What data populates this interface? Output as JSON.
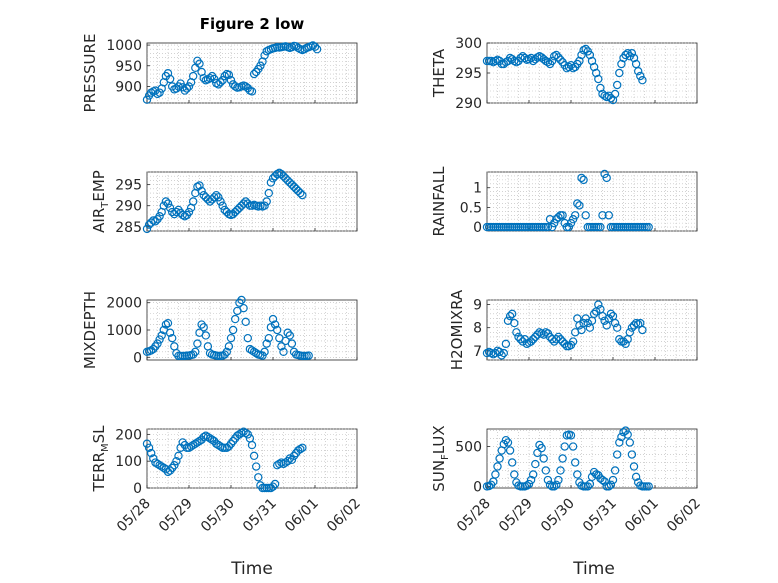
{
  "figure_title": "Figure 2 low",
  "xlabel": "Time",
  "x_ticks": [
    "05/28",
    "05/29",
    "05/30",
    "05/31",
    "06/01",
    "06/02"
  ],
  "colors": {
    "marker": "#0072bd",
    "axes": "#262626",
    "grid": "#b8b8b8"
  },
  "chart_data": [
    {
      "type": "scatter",
      "ylabel": "PRESSURE",
      "title": "Figure 2 low",
      "xlim": [
        "05/28",
        "06/02"
      ],
      "ylim": [
        860,
        1005
      ],
      "yticks": [
        900,
        950,
        1000
      ],
      "x_day_offsets": [
        0,
        0.05,
        0.1,
        0.15,
        0.2,
        0.25,
        0.3,
        0.35,
        0.4,
        0.45,
        0.5,
        0.55,
        0.6,
        0.65,
        0.7,
        0.75,
        0.8,
        0.85,
        0.9,
        0.95,
        1.0,
        1.05,
        1.1,
        1.15,
        1.2,
        1.25,
        1.3,
        1.35,
        1.4,
        1.45,
        1.5,
        1.55,
        1.6,
        1.65,
        1.7,
        1.75,
        1.8,
        1.85,
        1.9,
        1.95,
        2.0,
        2.05,
        2.1,
        2.15,
        2.2,
        2.25,
        2.3,
        2.35,
        2.4,
        2.45,
        2.5,
        2.55,
        2.6,
        2.65,
        2.7,
        2.75,
        2.8,
        2.85,
        2.9,
        2.95,
        3.0,
        3.05,
        3.1,
        3.15,
        3.2,
        3.25,
        3.3,
        3.35,
        3.4,
        3.45,
        3.5,
        3.55,
        3.6,
        3.65,
        3.7,
        3.75,
        3.8,
        3.85,
        3.9,
        3.95,
        4.0,
        4.05
      ],
      "values": [
        868,
        878,
        885,
        888,
        890,
        882,
        885,
        895,
        910,
        925,
        932,
        918,
        900,
        893,
        895,
        900,
        907,
        898,
        890,
        895,
        900,
        910,
        925,
        945,
        962,
        955,
        935,
        920,
        915,
        917,
        920,
        925,
        918,
        908,
        905,
        910,
        915,
        925,
        930,
        928,
        915,
        905,
        900,
        897,
        898,
        900,
        902,
        900,
        896,
        890,
        888,
        930,
        935,
        942,
        950,
        960,
        975,
        985,
        988,
        990,
        992,
        993,
        995,
        994,
        995,
        996,
        997,
        995,
        993,
        995,
        998,
        997,
        993,
        990,
        988,
        990,
        993,
        995,
        997,
        999,
        996,
        990
      ]
    },
    {
      "type": "scatter",
      "ylabel": "THETA",
      "xlim": [
        "05/28",
        "06/02"
      ],
      "ylim": [
        290,
        300
      ],
      "yticks": [
        290,
        295,
        300
      ],
      "x_day_offsets": [
        0,
        0.05,
        0.1,
        0.15,
        0.2,
        0.25,
        0.3,
        0.35,
        0.4,
        0.45,
        0.5,
        0.55,
        0.6,
        0.65,
        0.7,
        0.75,
        0.8,
        0.85,
        0.9,
        0.95,
        1.0,
        1.05,
        1.1,
        1.15,
        1.2,
        1.25,
        1.3,
        1.35,
        1.4,
        1.45,
        1.5,
        1.55,
        1.6,
        1.65,
        1.7,
        1.75,
        1.8,
        1.85,
        1.9,
        1.95,
        2.0,
        2.05,
        2.1,
        2.15,
        2.2,
        2.25,
        2.3,
        2.35,
        2.4,
        2.45,
        2.5,
        2.55,
        2.6,
        2.65,
        2.7,
        2.75,
        2.8,
        2.85,
        2.9,
        2.95,
        3.0,
        3.05,
        3.1,
        3.15,
        3.2,
        3.25,
        3.3,
        3.35,
        3.4,
        3.45,
        3.5,
        3.55,
        3.6,
        3.65,
        3.7
      ],
      "values": [
        297,
        297,
        297,
        296.8,
        297,
        297.2,
        297,
        296.5,
        296.5,
        296.8,
        297,
        297.5,
        297.3,
        297,
        296.8,
        297,
        297.5,
        297.8,
        297.5,
        297.2,
        297.3,
        297.5,
        297,
        297.3,
        297.6,
        297.8,
        297.6,
        297.3,
        297,
        296.8,
        296.5,
        297,
        297.8,
        298,
        297.6,
        297.2,
        296.8,
        296.3,
        295.8,
        296,
        296.3,
        295.8,
        296,
        296.5,
        297,
        298,
        298.8,
        299,
        298.6,
        298,
        297,
        296,
        295,
        294,
        292.5,
        291.5,
        291.2,
        291,
        291.2,
        290.8,
        290.5,
        291.5,
        293,
        295,
        296.5,
        297.5,
        298,
        298.3,
        297.8,
        298.3,
        297.5,
        296.5,
        295.3,
        294.5,
        293.8
      ]
    },
    {
      "type": "scatter",
      "ylabel": "AIR_TEMP",
      "xlim": [
        "05/28",
        "06/02"
      ],
      "ylim": [
        284,
        298
      ],
      "yticks": [
        285,
        290,
        295
      ],
      "x_day_offsets": [
        0,
        0.05,
        0.1,
        0.15,
        0.2,
        0.25,
        0.3,
        0.35,
        0.4,
        0.45,
        0.5,
        0.55,
        0.6,
        0.65,
        0.7,
        0.75,
        0.8,
        0.85,
        0.9,
        0.95,
        1.0,
        1.05,
        1.1,
        1.15,
        1.2,
        1.25,
        1.3,
        1.35,
        1.4,
        1.45,
        1.5,
        1.55,
        1.6,
        1.65,
        1.7,
        1.75,
        1.8,
        1.85,
        1.9,
        1.95,
        2.0,
        2.05,
        2.1,
        2.15,
        2.2,
        2.25,
        2.3,
        2.35,
        2.4,
        2.45,
        2.5,
        2.55,
        2.6,
        2.65,
        2.7,
        2.75,
        2.8,
        2.85,
        2.9,
        2.95,
        3.0,
        3.05,
        3.1,
        3.15,
        3.2,
        3.25,
        3.3,
        3.35,
        3.4,
        3.45,
        3.5,
        3.55,
        3.6,
        3.65,
        3.7
      ],
      "values": [
        284.5,
        285.5,
        286,
        286.5,
        286.3,
        286.8,
        287.5,
        288.5,
        290,
        291,
        290.5,
        289.5,
        288.5,
        288,
        288.5,
        289,
        288.3,
        287.8,
        287.5,
        287.8,
        288.5,
        289.5,
        291,
        293,
        294.5,
        294.8,
        293.5,
        292.5,
        292,
        291.5,
        291,
        291.5,
        292,
        292.5,
        292,
        291,
        290,
        289,
        288.5,
        288,
        287.8,
        288,
        288.5,
        289,
        289.5,
        290,
        290.5,
        291,
        290.5,
        290,
        290,
        290.2,
        290,
        289.8,
        290,
        289.8,
        290,
        291,
        293,
        295.5,
        296.5,
        297,
        297.5,
        297.8,
        297.5,
        297,
        296.5,
        296,
        295.5,
        295,
        294.5,
        294,
        293.5,
        293,
        292.5
      ]
    },
    {
      "type": "scatter",
      "ylabel": "RAINFALL",
      "xlim": [
        "05/28",
        "06/02"
      ],
      "ylim": [
        -0.1,
        1.4
      ],
      "yticks": [
        0,
        0.5,
        1
      ],
      "x_day_offsets": [
        0,
        0.05,
        0.1,
        0.15,
        0.2,
        0.25,
        0.3,
        0.35,
        0.4,
        0.45,
        0.5,
        0.55,
        0.6,
        0.65,
        0.7,
        0.75,
        0.8,
        0.85,
        0.9,
        0.95,
        1.0,
        1.05,
        1.1,
        1.15,
        1.2,
        1.25,
        1.3,
        1.35,
        1.4,
        1.45,
        1.5,
        1.55,
        1.6,
        1.65,
        1.7,
        1.75,
        1.8,
        1.85,
        1.9,
        1.95,
        2.0,
        2.05,
        2.1,
        2.15,
        2.2,
        2.25,
        2.3,
        2.35,
        2.4,
        2.45,
        2.5,
        2.55,
        2.6,
        2.65,
        2.7,
        2.75,
        2.8,
        2.85,
        2.9,
        2.95,
        3.0,
        3.05,
        3.1,
        3.15,
        3.2,
        3.25,
        3.3,
        3.35,
        3.4,
        3.45,
        3.5,
        3.55,
        3.6,
        3.65,
        3.7,
        3.75,
        3.8,
        3.85
      ],
      "values": [
        0,
        0,
        0,
        0,
        0,
        0,
        0,
        0,
        0,
        0,
        0,
        0,
        0,
        0,
        0,
        0,
        0,
        0,
        0,
        0,
        0,
        0,
        0,
        0,
        0,
        0,
        0,
        0,
        0,
        0,
        0.2,
        0,
        0.1,
        0.2,
        0.25,
        0.3,
        0.3,
        0.1,
        0,
        0,
        0.1,
        0.2,
        0.3,
        0.6,
        0.55,
        1.25,
        1.2,
        0.3,
        0,
        0,
        0,
        0,
        0,
        0,
        0,
        0.3,
        1.35,
        1.25,
        0.3,
        0,
        0,
        0,
        0,
        0,
        0,
        0,
        0,
        0,
        0,
        0,
        0,
        0,
        0,
        0,
        0,
        0,
        0,
        0
      ]
    },
    {
      "type": "scatter",
      "ylabel": "MIXDEPTH",
      "xlim": [
        "05/28",
        "06/02"
      ],
      "ylim": [
        -100,
        2100
      ],
      "yticks": [
        0,
        1000,
        2000
      ],
      "x_day_offsets": [
        0,
        0.05,
        0.1,
        0.15,
        0.2,
        0.25,
        0.3,
        0.35,
        0.4,
        0.45,
        0.5,
        0.55,
        0.6,
        0.65,
        0.7,
        0.75,
        0.8,
        0.85,
        0.9,
        0.95,
        1.0,
        1.05,
        1.1,
        1.15,
        1.2,
        1.25,
        1.3,
        1.35,
        1.4,
        1.45,
        1.5,
        1.55,
        1.6,
        1.65,
        1.7,
        1.75,
        1.8,
        1.85,
        1.9,
        1.95,
        2.0,
        2.05,
        2.1,
        2.15,
        2.2,
        2.25,
        2.3,
        2.35,
        2.4,
        2.45,
        2.5,
        2.55,
        2.6,
        2.65,
        2.7,
        2.75,
        2.8,
        2.85,
        2.9,
        2.95,
        3.0,
        3.05,
        3.1,
        3.15,
        3.2,
        3.25,
        3.3,
        3.35,
        3.4,
        3.45,
        3.5,
        3.55,
        3.6,
        3.65,
        3.7,
        3.75,
        3.8,
        3.85
      ],
      "values": [
        200,
        220,
        250,
        300,
        400,
        500,
        650,
        800,
        1000,
        1200,
        1250,
        900,
        700,
        400,
        150,
        50,
        50,
        50,
        50,
        60,
        60,
        80,
        100,
        200,
        500,
        900,
        1200,
        1100,
        800,
        400,
        150,
        100,
        80,
        60,
        50,
        50,
        60,
        100,
        200,
        400,
        700,
        1000,
        1400,
        1700,
        2000,
        2100,
        1800,
        1300,
        700,
        300,
        250,
        200,
        150,
        100,
        80,
        60,
        200,
        500,
        700,
        1100,
        1400,
        1200,
        1000,
        700,
        400,
        200,
        600,
        900,
        800,
        500,
        200,
        100,
        80,
        60,
        50,
        50,
        50,
        60
      ]
    },
    {
      "type": "scatter",
      "ylabel": "H2OMIXRA",
      "xlim": [
        "05/28",
        "06/02"
      ],
      "ylim": [
        6.6,
        9.2
      ],
      "yticks": [
        7,
        8,
        9
      ],
      "x_day_offsets": [
        0,
        0.05,
        0.1,
        0.15,
        0.2,
        0.25,
        0.3,
        0.35,
        0.4,
        0.45,
        0.5,
        0.55,
        0.6,
        0.65,
        0.7,
        0.75,
        0.8,
        0.85,
        0.9,
        0.95,
        1.0,
        1.05,
        1.1,
        1.15,
        1.2,
        1.25,
        1.3,
        1.35,
        1.4,
        1.45,
        1.5,
        1.55,
        1.6,
        1.65,
        1.7,
        1.75,
        1.8,
        1.85,
        1.9,
        1.95,
        2.0,
        2.05,
        2.1,
        2.15,
        2.2,
        2.25,
        2.3,
        2.35,
        2.4,
        2.45,
        2.5,
        2.55,
        2.6,
        2.65,
        2.7,
        2.75,
        2.8,
        2.85,
        2.9,
        2.95,
        3.0,
        3.05,
        3.1,
        3.15,
        3.2,
        3.25,
        3.3,
        3.35,
        3.4,
        3.45,
        3.5,
        3.55,
        3.6,
        3.65,
        3.7
      ],
      "values": [
        6.9,
        6.95,
        6.9,
        6.85,
        6.9,
        7.0,
        6.95,
        6.8,
        6.9,
        7.3,
        8.3,
        8.5,
        8.6,
        8.2,
        7.8,
        7.6,
        7.5,
        7.4,
        7.5,
        7.3,
        7.35,
        7.4,
        7.5,
        7.6,
        7.7,
        7.8,
        7.75,
        7.7,
        7.8,
        7.75,
        7.6,
        7.5,
        7.4,
        7.5,
        7.6,
        7.5,
        7.4,
        7.3,
        7.2,
        7.2,
        7.25,
        7.4,
        7.8,
        8.4,
        8.1,
        7.9,
        8.2,
        8.4,
        8.2,
        8.0,
        8.3,
        8.6,
        8.7,
        9.0,
        8.8,
        8.5,
        8.3,
        8.1,
        8.4,
        8.6,
        8.5,
        8.2,
        8.0,
        7.5,
        7.4,
        7.4,
        7.3,
        7.5,
        7.8,
        8.0,
        8.1,
        8.2,
        8.15,
        8.2,
        7.9
      ]
    },
    {
      "type": "scatter",
      "ylabel": "TERR_MSL",
      "xlim": [
        "05/28",
        "06/02"
      ],
      "ylim": [
        0,
        220
      ],
      "yticks": [
        0,
        100,
        200
      ],
      "x_day_offsets": [
        0,
        0.05,
        0.1,
        0.15,
        0.2,
        0.25,
        0.3,
        0.35,
        0.4,
        0.45,
        0.5,
        0.55,
        0.6,
        0.65,
        0.7,
        0.75,
        0.8,
        0.85,
        0.9,
        0.95,
        1.0,
        1.05,
        1.1,
        1.15,
        1.2,
        1.25,
        1.3,
        1.35,
        1.4,
        1.45,
        1.5,
        1.55,
        1.6,
        1.65,
        1.7,
        1.75,
        1.8,
        1.85,
        1.9,
        1.95,
        2.0,
        2.05,
        2.1,
        2.15,
        2.2,
        2.25,
        2.3,
        2.35,
        2.4,
        2.45,
        2.5,
        2.55,
        2.6,
        2.65,
        2.7,
        2.75,
        2.8,
        2.85,
        2.9,
        2.95,
        3.0,
        3.05,
        3.1,
        3.15,
        3.2,
        3.25,
        3.3,
        3.35,
        3.4,
        3.45,
        3.5,
        3.55,
        3.6,
        3.65,
        3.7
      ],
      "values": [
        165,
        150,
        130,
        110,
        95,
        90,
        85,
        80,
        75,
        70,
        60,
        65,
        75,
        85,
        100,
        120,
        150,
        170,
        160,
        150,
        150,
        155,
        160,
        165,
        170,
        175,
        180,
        190,
        195,
        190,
        185,
        180,
        175,
        165,
        160,
        155,
        150,
        150,
        150,
        155,
        165,
        175,
        185,
        195,
        200,
        205,
        210,
        205,
        200,
        185,
        160,
        120,
        80,
        40,
        10,
        0,
        0,
        0,
        0,
        0,
        5,
        15,
        85,
        90,
        95,
        90,
        95,
        100,
        110,
        105,
        120,
        130,
        140,
        145,
        150
      ]
    },
    {
      "type": "scatter",
      "ylabel": "SUN_FLUX",
      "xlim": [
        "05/28",
        "06/02"
      ],
      "ylim": [
        -20,
        720
      ],
      "yticks": [
        0,
        500
      ],
      "x_day_offsets": [
        0,
        0.05,
        0.1,
        0.15,
        0.2,
        0.25,
        0.3,
        0.35,
        0.4,
        0.45,
        0.5,
        0.55,
        0.6,
        0.65,
        0.7,
        0.75,
        0.8,
        0.85,
        0.9,
        0.95,
        1.0,
        1.05,
        1.1,
        1.15,
        1.2,
        1.25,
        1.3,
        1.35,
        1.4,
        1.45,
        1.5,
        1.55,
        1.6,
        1.65,
        1.7,
        1.75,
        1.8,
        1.85,
        1.9,
        1.95,
        2.0,
        2.05,
        2.1,
        2.15,
        2.2,
        2.25,
        2.3,
        2.35,
        2.4,
        2.45,
        2.5,
        2.55,
        2.6,
        2.65,
        2.7,
        2.75,
        2.8,
        2.85,
        2.9,
        2.95,
        3.0,
        3.05,
        3.1,
        3.15,
        3.2,
        3.25,
        3.3,
        3.35,
        3.4,
        3.45,
        3.5,
        3.55,
        3.6,
        3.65,
        3.7,
        3.75,
        3.8,
        3.85
      ],
      "values": [
        0,
        5,
        20,
        60,
        150,
        250,
        350,
        450,
        530,
        580,
        550,
        450,
        300,
        150,
        50,
        10,
        0,
        0,
        0,
        10,
        30,
        80,
        150,
        280,
        420,
        520,
        480,
        350,
        200,
        80,
        20,
        0,
        0,
        20,
        80,
        200,
        350,
        500,
        640,
        650,
        640,
        500,
        300,
        150,
        50,
        10,
        0,
        0,
        0,
        30,
        120,
        180,
        150,
        140,
        100,
        80,
        60,
        0,
        0,
        20,
        80,
        200,
        400,
        550,
        620,
        680,
        700,
        650,
        550,
        400,
        250,
        120,
        50,
        10,
        0,
        0,
        0,
        0
      ]
    }
  ]
}
